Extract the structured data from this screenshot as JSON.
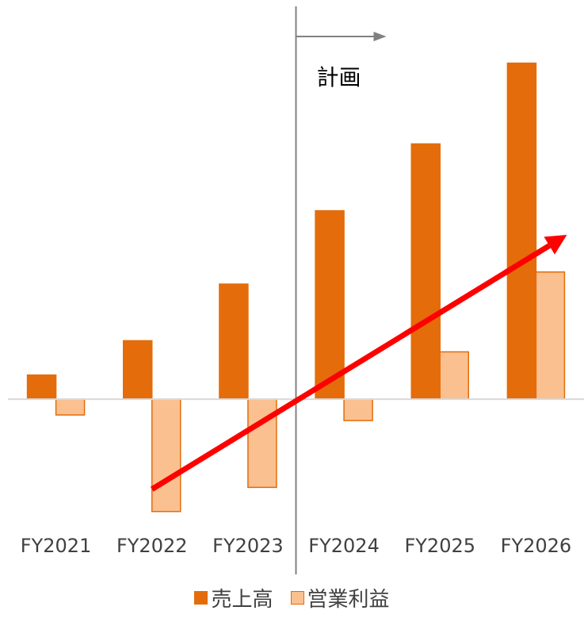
{
  "chart_data": {
    "type": "bar",
    "categories": [
      "FY2021",
      "FY2022",
      "FY2023",
      "FY2024",
      "FY2025",
      "FY2026"
    ],
    "series": [
      {
        "name": "売上高",
        "values": [
          2.6,
          6.3,
          12.4,
          20.3,
          27.5,
          36.2
        ],
        "color": "#E46C0A"
      },
      {
        "name": "営業利益",
        "values": [
          -1.7,
          -12.1,
          -9.5,
          -2.3,
          5.1,
          13.7
        ],
        "color": "#FAC090"
      }
    ],
    "ylim": [
      -24,
      43
    ],
    "zero_line": true,
    "legend": "bottom",
    "annotation": {
      "text": "計画",
      "divider_after_category": "FY2023"
    },
    "trend_arrow": {
      "color": "#FF0000",
      "from_category": "FY2022",
      "to_category": "FY2026",
      "from_value": -9.7,
      "to_value": 17.7
    }
  }
}
